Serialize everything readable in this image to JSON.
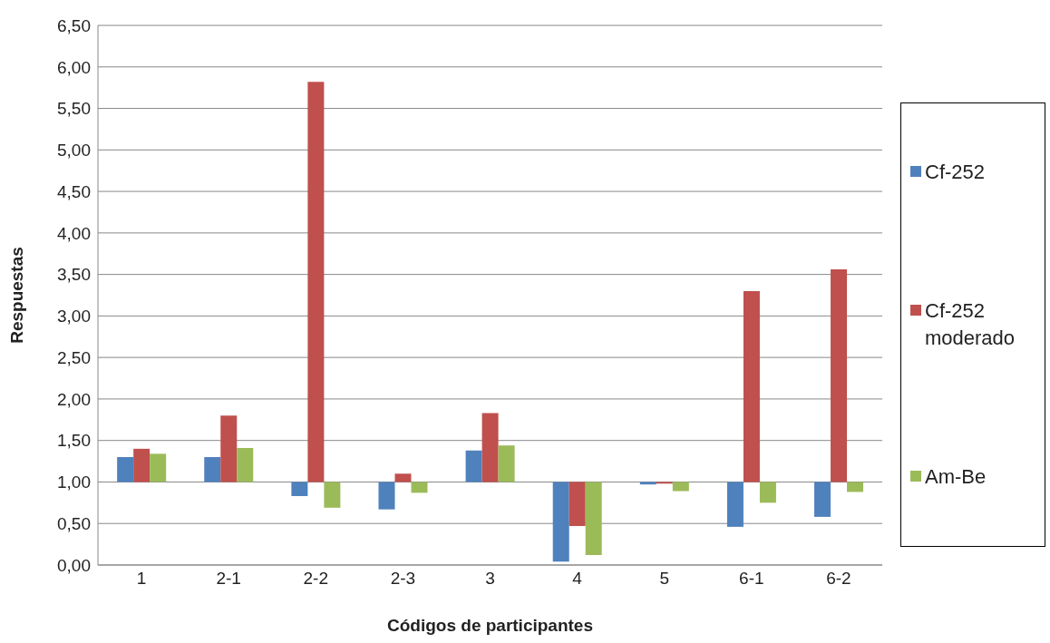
{
  "chart_data": {
    "type": "bar",
    "xlabel": "Códigos de participantes",
    "ylabel": "Respuestas",
    "categories": [
      "1",
      "2-1",
      "2-2",
      "2-3",
      "3",
      "4",
      "5",
      "6-1",
      "6-2"
    ],
    "series": [
      {
        "name": "Cf-252",
        "color": "#4f81bd",
        "base": [
          1,
          1,
          1,
          1,
          1,
          1,
          1,
          1,
          1
        ],
        "values": [
          0.3,
          0.3,
          -0.17,
          -0.33,
          0.38,
          -0.96,
          -0.03,
          -0.54,
          -0.42
        ]
      },
      {
        "name": "Cf-252 moderado",
        "color": "#c0504d",
        "base": [
          1,
          1,
          1,
          1,
          1,
          1,
          1,
          1,
          1
        ],
        "values": [
          0.4,
          0.8,
          4.82,
          0.1,
          0.83,
          -0.53,
          -0.02,
          2.3,
          2.56
        ]
      },
      {
        "name": "Am-Be",
        "color": "#9bbb59",
        "base": [
          1,
          1,
          1,
          1,
          1,
          1,
          1,
          1,
          1
        ],
        "values": [
          0.34,
          0.41,
          -0.31,
          -0.13,
          0.44,
          -0.88,
          -0.11,
          -0.25,
          -0.12
        ]
      }
    ],
    "ylim": [
      0,
      6.5
    ],
    "yticks": [
      {
        "value": 0,
        "label": "0,00"
      },
      {
        "value": 0.5,
        "label": "0,50"
      },
      {
        "value": 1,
        "label": "1,00"
      },
      {
        "value": 1.5,
        "label": "1,50"
      },
      {
        "value": 2,
        "label": "2,00"
      },
      {
        "value": 2.5,
        "label": "2,50"
      },
      {
        "value": 3,
        "label": "3,00"
      },
      {
        "value": 3.5,
        "label": "3,50"
      },
      {
        "value": 4,
        "label": "4,00"
      },
      {
        "value": 4.5,
        "label": "4,50"
      },
      {
        "value": 5,
        "label": "5,00"
      },
      {
        "value": 5.5,
        "label": "5,50"
      },
      {
        "value": 6,
        "label": "6,00"
      },
      {
        "value": 6.5,
        "label": "6,50"
      }
    ],
    "grid": "y",
    "legend": "right"
  }
}
